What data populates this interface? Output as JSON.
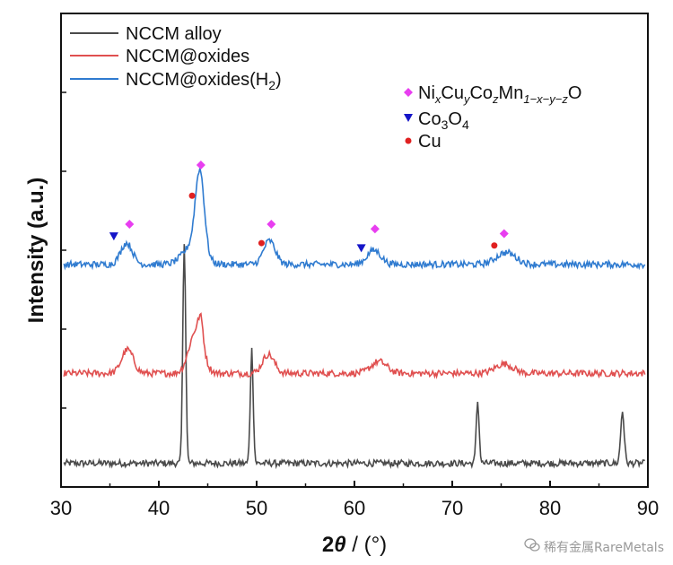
{
  "chart_data": {
    "type": "line",
    "xlabel": "2θ / (°)",
    "ylabel": "Intensity (a.u.)",
    "xlim": [
      30,
      90
    ],
    "ylim": [
      0,
      100
    ],
    "xticks": [
      30,
      40,
      50,
      60,
      70,
      80,
      90
    ],
    "grid": false,
    "legend_position": "top-left",
    "series": [
      {
        "name": "NCCM alloy",
        "color": "#4a4a4a",
        "baseline": 5,
        "peaks": [
          [
            42.6,
            47,
            0.15
          ],
          [
            49.5,
            24,
            0.15
          ],
          [
            72.6,
            13,
            0.15
          ],
          [
            87.4,
            11,
            0.18
          ]
        ]
      },
      {
        "name": "NCCM@oxides",
        "color": "#e05050",
        "baseline": 24,
        "peaks": [
          [
            36.8,
            5,
            0.6
          ],
          [
            43.8,
            9,
            0.7
          ],
          [
            44.3,
            5,
            0.25
          ],
          [
            51.2,
            4,
            0.6
          ],
          [
            62.5,
            2.5,
            0.8
          ],
          [
            75.3,
            2,
            0.9
          ]
        ]
      },
      {
        "name": "NCCM@oxides(H2)",
        "color": "#2f7bd0",
        "baseline": 47,
        "peaks": [
          [
            36.7,
            4.5,
            0.6
          ],
          [
            44.2,
            17,
            0.45
          ],
          [
            43.5,
            4,
            1.0
          ],
          [
            51.3,
            5,
            0.6
          ],
          [
            62.0,
            3,
            0.7
          ],
          [
            75.5,
            2.5,
            1.0
          ]
        ]
      }
    ],
    "phase_legend": [
      {
        "label": "NixCuyCozMn1−x−y−zO",
        "marker": "diamond",
        "color": "#e83ef0"
      },
      {
        "label": "Co3O4",
        "marker": "triangle-down",
        "color": "#1515c8"
      },
      {
        "label": "Cu",
        "marker": "circle",
        "color": "#e02020"
      }
    ],
    "annotations": [
      {
        "phase": "NixCuyCozMn1−x−y−zO",
        "marker": "diamond",
        "color": "#e83ef0",
        "x": 37.0,
        "y": 55.5
      },
      {
        "phase": "NixCuyCozMn1−x−y−zO",
        "marker": "diamond",
        "color": "#e83ef0",
        "x": 44.3,
        "y": 68
      },
      {
        "phase": "NixCuyCozMn1−x−y−zO",
        "marker": "diamond",
        "color": "#e83ef0",
        "x": 51.5,
        "y": 55.5
      },
      {
        "phase": "NixCuyCozMn1−x−y−zO",
        "marker": "diamond",
        "color": "#e83ef0",
        "x": 62.1,
        "y": 54.5
      },
      {
        "phase": "NixCuyCozMn1−x−y−zO",
        "marker": "diamond",
        "color": "#e83ef0",
        "x": 75.3,
        "y": 53.5
      },
      {
        "phase": "Co3O4",
        "marker": "triangle-down",
        "color": "#1515c8",
        "x": 35.4,
        "y": 53
      },
      {
        "phase": "Co3O4",
        "marker": "triangle-down",
        "color": "#1515c8",
        "x": 60.7,
        "y": 50.5
      },
      {
        "phase": "Cu",
        "marker": "circle",
        "color": "#e02020",
        "x": 43.4,
        "y": 61.5
      },
      {
        "phase": "Cu",
        "marker": "circle",
        "color": "#e02020",
        "x": 50.5,
        "y": 51.5
      },
      {
        "phase": "Cu",
        "marker": "circle",
        "color": "#e02020",
        "x": 74.3,
        "y": 51
      }
    ]
  },
  "legend": {
    "items": [
      {
        "text": "NCCM alloy",
        "color": "#4a4a4a"
      },
      {
        "text": "NCCM@oxides",
        "color": "#e05050"
      },
      {
        "text": "NCCM@oxides(H",
        "sub": "2",
        "tail": ")",
        "color": "#2f7bd0"
      }
    ]
  },
  "phase_labels": {
    "oxide": {
      "a": "Ni",
      "b": "x",
      "c": "Cu",
      "d": "y",
      "e": "Co",
      "f": "z",
      "g": "Mn",
      "h": "1−x−y−z",
      "i": "O"
    },
    "co3o4": {
      "a": "Co",
      "b": "3",
      "c": "O",
      "d": "4"
    },
    "cu": "Cu"
  },
  "axis": {
    "xlabel_main": "2",
    "xlabel_theta": "θ",
    "xlabel_unit": " / (°)",
    "ylabel": "Intensity (a.u.)"
  },
  "watermark": {
    "text": "稀有金属RareMetals"
  }
}
